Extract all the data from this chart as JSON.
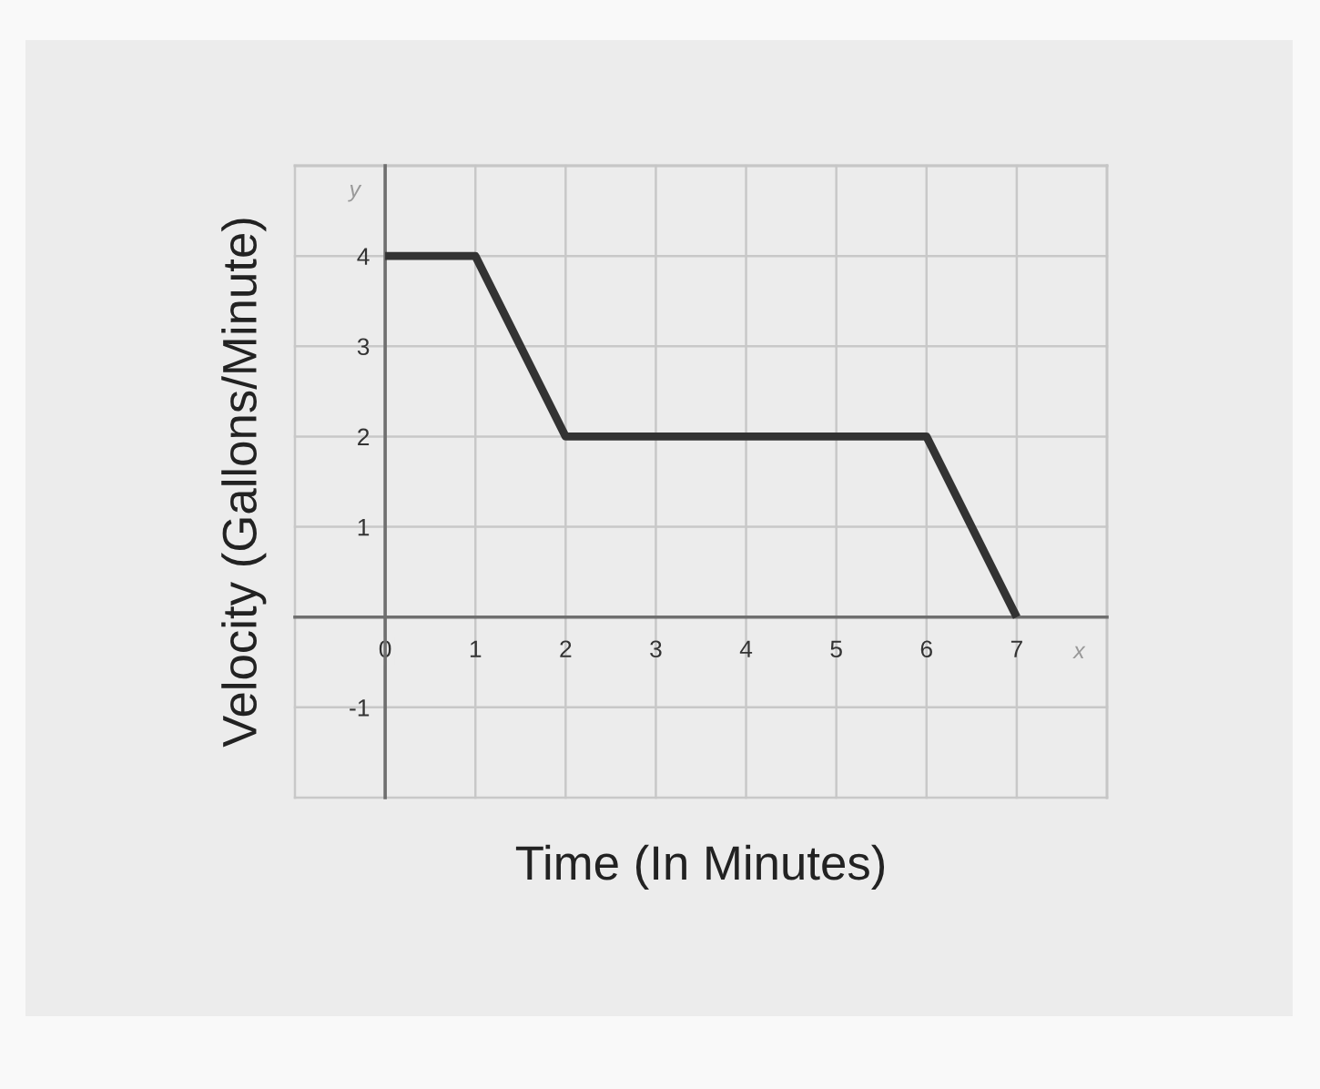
{
  "chart_data": {
    "type": "line",
    "xlabel": "Time (In Minutes)",
    "ylabel": "Velocity (Gallons/Minute)",
    "x": [
      0,
      1,
      2,
      6,
      7
    ],
    "series": [
      {
        "color": "#333333",
        "values": [
          4,
          4,
          2,
          2,
          0
        ]
      }
    ],
    "xlim": [
      -1,
      8
    ],
    "ylim": [
      -2,
      5
    ],
    "xticks": [
      {
        "value": -1,
        "label": null
      },
      0,
      1,
      2,
      3,
      4,
      5,
      6,
      7,
      {
        "value": 8,
        "label": null
      }
    ],
    "yticks": [
      {
        "value": -2,
        "label": null
      },
      -1,
      {
        "value": 0,
        "label": null
      },
      1,
      2,
      3,
      4,
      {
        "value": 5,
        "label": null
      }
    ],
    "grid": true,
    "line_style": "solid",
    "annotations": [
      "x",
      "y"
    ]
  }
}
